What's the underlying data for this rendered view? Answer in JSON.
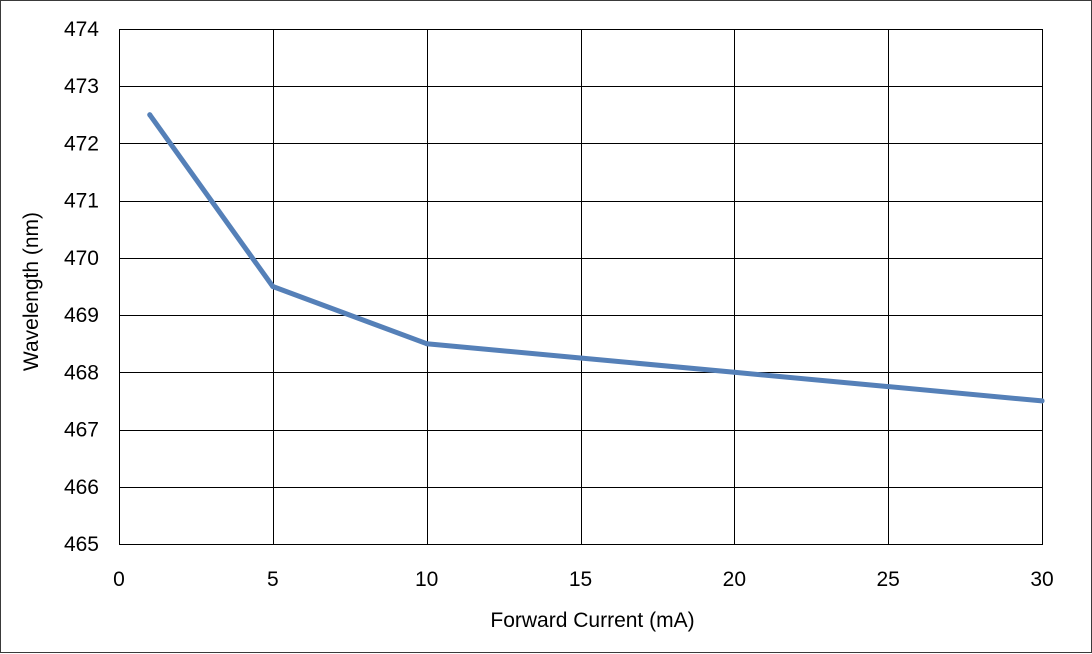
{
  "chart_data": {
    "type": "line",
    "title": "",
    "xlabel": "Forward Current (mA)",
    "ylabel": "Wavelength (nm)",
    "xlim": [
      0,
      30
    ],
    "ylim": [
      465,
      474
    ],
    "x_ticks": [
      "0",
      "5",
      "10",
      "15",
      "20",
      "25",
      "30"
    ],
    "y_ticks": [
      "465",
      "466",
      "467",
      "468",
      "469",
      "470",
      "471",
      "472",
      "473",
      "474"
    ],
    "grid": true,
    "legend": "none",
    "series": [
      {
        "color": "#5580b8",
        "points": [
          {
            "x": 1,
            "y": 472.5
          },
          {
            "x": 5,
            "y": 469.5
          },
          {
            "x": 10,
            "y": 468.5
          },
          {
            "x": 15,
            "y": 468.25
          },
          {
            "x": 20,
            "y": 468.0
          },
          {
            "x": 25,
            "y": 467.75
          },
          {
            "x": 30,
            "y": 467.5
          }
        ]
      }
    ]
  }
}
